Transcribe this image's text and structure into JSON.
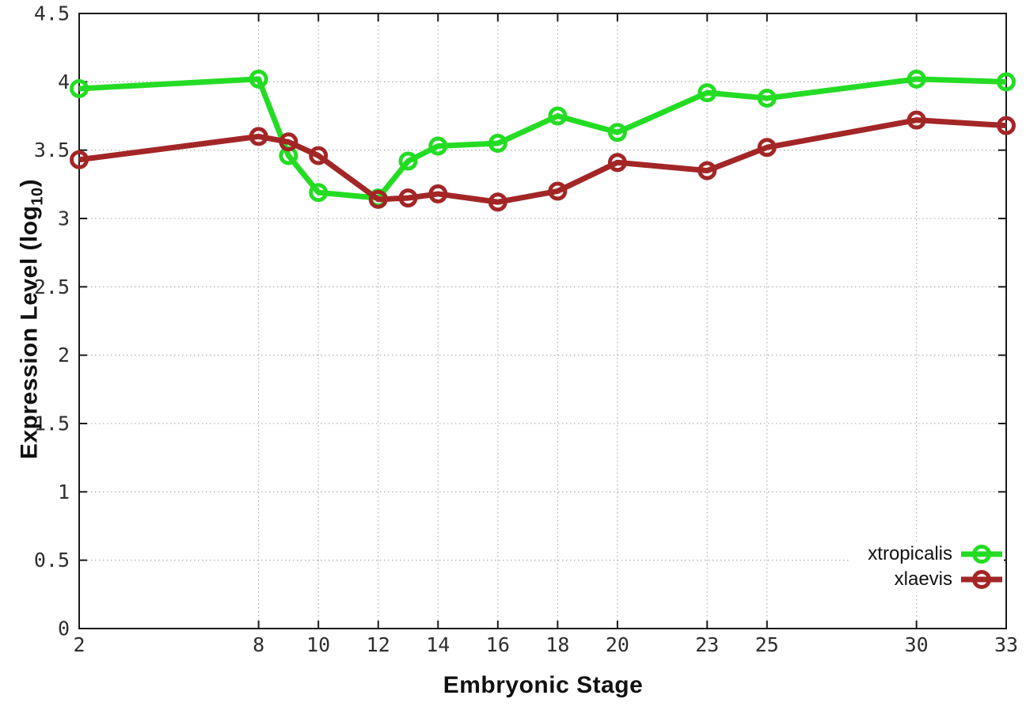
{
  "chart_data": {
    "type": "line",
    "title": "",
    "xlabel": "Embryonic Stage",
    "ylabel": {
      "prefix": "Expression Level (log",
      "sub": "10",
      "suffix": ")"
    },
    "x": [
      2,
      8,
      9,
      10,
      12,
      13,
      14,
      16,
      18,
      20,
      23,
      25,
      30,
      33
    ],
    "series": [
      {
        "name": "xtropicalis",
        "color": "#24dc24",
        "values": [
          3.95,
          4.02,
          3.46,
          3.19,
          3.15,
          3.42,
          3.53,
          3.55,
          3.75,
          3.63,
          3.92,
          3.88,
          4.02,
          4.0
        ]
      },
      {
        "name": "xlaevis",
        "color": "#a32626",
        "values": [
          3.43,
          3.6,
          3.56,
          3.46,
          3.14,
          3.15,
          3.18,
          3.12,
          3.2,
          3.41,
          3.35,
          3.52,
          3.72,
          3.68
        ]
      }
    ],
    "xlim": [
      2,
      33
    ],
    "ylim": [
      0,
      4.5
    ],
    "xticks": {
      "values": [
        2,
        8,
        10,
        12,
        14,
        16,
        18,
        20,
        23,
        25,
        30,
        33
      ],
      "labels": [
        "2",
        "8",
        "10",
        "12",
        "14",
        "16",
        "18",
        "20",
        "23",
        "25",
        "30",
        "33"
      ]
    },
    "yticks": {
      "values": [
        0,
        0.5,
        1,
        1.5,
        2,
        2.5,
        3,
        3.5,
        4,
        4.5
      ],
      "labels": [
        "0",
        "0.5",
        "1",
        "1.5",
        "2",
        "2.5",
        "3",
        "3.5",
        "4",
        "4.5"
      ]
    },
    "grid": true,
    "legend_position": "inside-bottom-right",
    "marker": "open-circle",
    "colors": {
      "axis": "#1a1a1a",
      "grid": "#b3b3b3",
      "tick_label": "#2e2e2e",
      "background": "#ffffff"
    }
  }
}
